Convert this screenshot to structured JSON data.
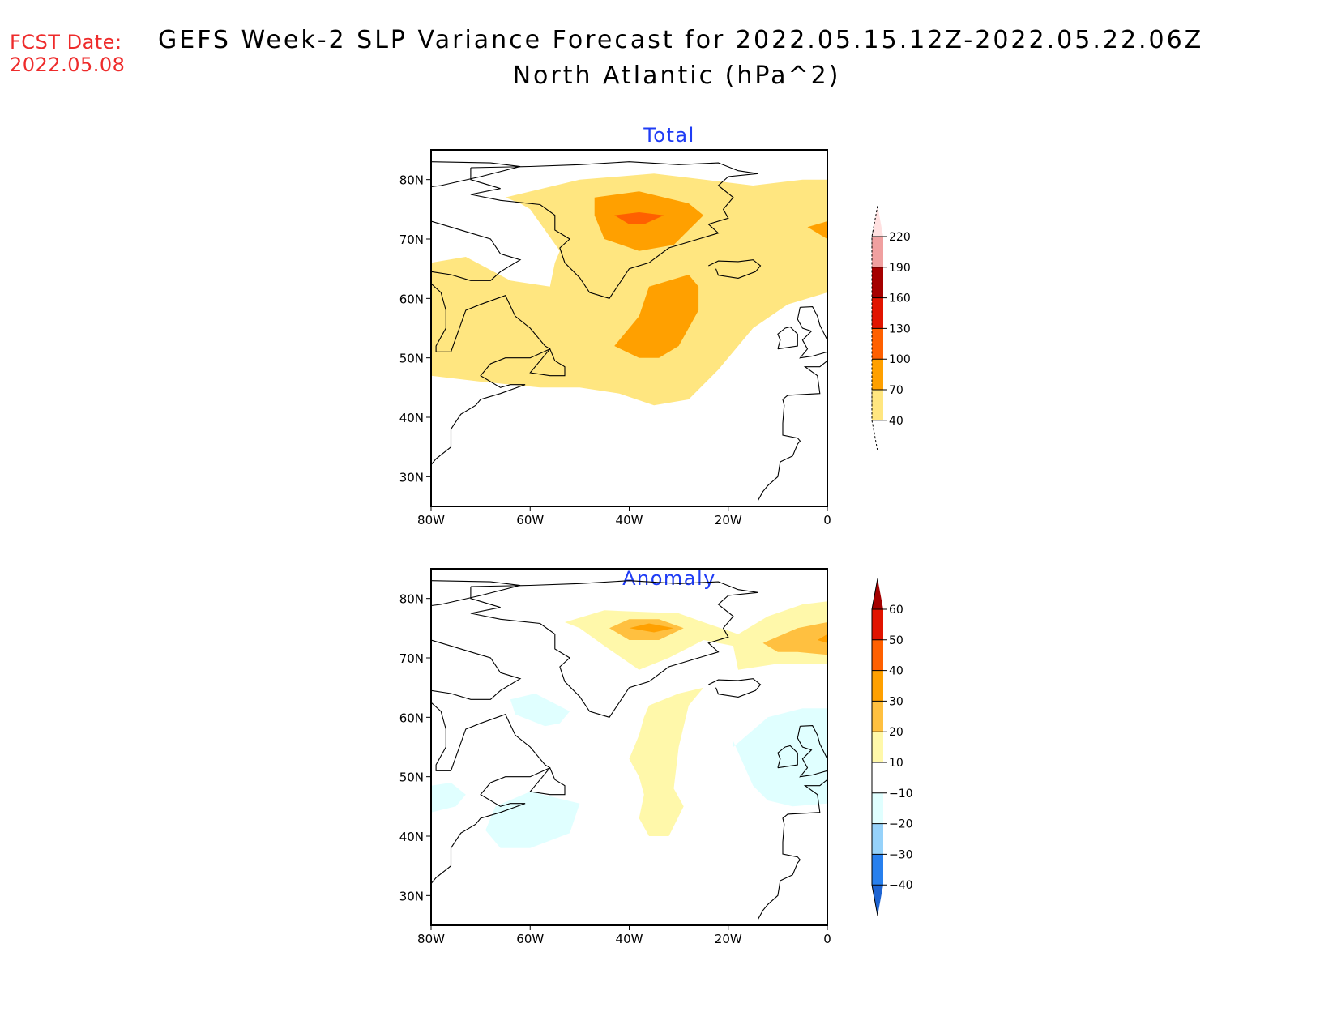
{
  "header": {
    "fcst_label": "FCST Date:",
    "fcst_date": "2022.05.08",
    "title_line1": "GEFS Week-2 SLP Variance Forecast for 2022.05.15.12Z-2022.05.22.06Z",
    "title_line2": "North Atlantic (hPa^2)"
  },
  "colors": {
    "title_text": "#000000",
    "fcst_text": "#ee2b2b",
    "panel_title_text": "#1f3cf5"
  },
  "chart_data": [
    {
      "type": "heatmap",
      "title": "Total",
      "projection": "lat-lon",
      "xlabel": "",
      "ylabel": "",
      "xlim": [
        -80,
        0
      ],
      "ylim": [
        25,
        85
      ],
      "x_ticks": [
        {
          "value": -80,
          "label": "80W"
        },
        {
          "value": -60,
          "label": "60W"
        },
        {
          "value": -40,
          "label": "40W"
        },
        {
          "value": -20,
          "label": "20W"
        },
        {
          "value": 0,
          "label": "0"
        }
      ],
      "y_ticks": [
        {
          "value": 80,
          "label": "80N"
        },
        {
          "value": 70,
          "label": "70N"
        },
        {
          "value": 60,
          "label": "60N"
        },
        {
          "value": 50,
          "label": "50N"
        },
        {
          "value": 40,
          "label": "40N"
        },
        {
          "value": 30,
          "label": "30N"
        }
      ],
      "colorbar": {
        "levels": [
          40,
          70,
          100,
          130,
          160,
          190,
          220
        ],
        "labels": [
          "40",
          "70",
          "100",
          "130",
          "160",
          "190",
          "220"
        ],
        "colors": [
          "#ffe680",
          "#ffa000",
          "#ff6000",
          "#e11400",
          "#a50000",
          "#f0a0a0",
          "#ffe0e0"
        ],
        "below_color": "#ffffff",
        "above_color": "#ffe0e0"
      },
      "regions": [
        {
          "name": "total-40-70-band",
          "level": "40-70",
          "lonlat": [
            [
              -65,
              77
            ],
            [
              -50,
              80
            ],
            [
              -35,
              81
            ],
            [
              -15,
              79
            ],
            [
              -5,
              80
            ],
            [
              0,
              80
            ],
            [
              0,
              61
            ],
            [
              -8,
              59
            ],
            [
              -15,
              55
            ],
            [
              -22,
              48
            ],
            [
              -28,
              43
            ],
            [
              -35,
              42
            ],
            [
              -42,
              44
            ],
            [
              -50,
              45
            ],
            [
              -58,
              45
            ],
            [
              -70,
              46
            ],
            [
              -80,
              47
            ],
            [
              -80,
              66
            ],
            [
              -73,
              67
            ],
            [
              -64,
              63
            ],
            [
              -56,
              62
            ],
            [
              -55,
              66
            ],
            [
              -54,
              68
            ],
            [
              -60,
              75
            ],
            [
              -62,
              76
            ]
          ]
        },
        {
          "name": "total-70-100-north",
          "level": "70-100",
          "lonlat": [
            [
              -47,
              77
            ],
            [
              -38,
              78
            ],
            [
              -28,
              76
            ],
            [
              -25,
              74
            ],
            [
              -31,
              69
            ],
            [
              -38,
              68
            ],
            [
              -45,
              70
            ],
            [
              -47,
              74
            ]
          ]
        },
        {
          "name": "total-100-130-north",
          "level": "100-130",
          "lonlat": [
            [
              -43,
              74
            ],
            [
              -38,
              74.5
            ],
            [
              -33,
              74
            ],
            [
              -37,
              72.5
            ],
            [
              -40,
              72.5
            ]
          ]
        },
        {
          "name": "total-70-100-central",
          "level": "70-100",
          "lonlat": [
            [
              -36,
              62
            ],
            [
              -28,
              64
            ],
            [
              -26,
              62
            ],
            [
              -26,
              58
            ],
            [
              -30,
              52
            ],
            [
              -34,
              50
            ],
            [
              -38,
              50
            ],
            [
              -43,
              52
            ],
            [
              -40,
              55
            ],
            [
              -38,
              57
            ]
          ]
        },
        {
          "name": "total-70-100-east-edge",
          "level": "70-100",
          "lonlat": [
            [
              -4,
              72
            ],
            [
              0,
              73
            ],
            [
              0,
              70
            ]
          ]
        }
      ]
    },
    {
      "type": "heatmap",
      "title": "Anomaly",
      "projection": "lat-lon",
      "xlabel": "",
      "ylabel": "",
      "xlim": [
        -80,
        0
      ],
      "ylim": [
        25,
        85
      ],
      "x_ticks": [
        {
          "value": -80,
          "label": "80W"
        },
        {
          "value": -60,
          "label": "60W"
        },
        {
          "value": -40,
          "label": "40W"
        },
        {
          "value": -20,
          "label": "20W"
        },
        {
          "value": 0,
          "label": "0"
        }
      ],
      "y_ticks": [
        {
          "value": 80,
          "label": "80N"
        },
        {
          "value": 70,
          "label": "70N"
        },
        {
          "value": 60,
          "label": "60N"
        },
        {
          "value": 50,
          "label": "50N"
        },
        {
          "value": 40,
          "label": "40N"
        },
        {
          "value": 30,
          "label": "30N"
        }
      ],
      "colorbar": {
        "levels": [
          -40,
          -30,
          -20,
          -10,
          10,
          20,
          30,
          40,
          50,
          60
        ],
        "labels": [
          "-40",
          "-30",
          "-20",
          "-10",
          "10",
          "20",
          "30",
          "40",
          "50",
          "60"
        ],
        "colors": [
          "#2880ee",
          "#96d2fa",
          "#e0ffff",
          "#ffffff",
          "#fff8aa",
          "#ffc040",
          "#ffa000",
          "#ff6000",
          "#e11400"
        ],
        "below_color": "#1e64d2",
        "above_color": "#a50000"
      },
      "regions": [
        {
          "name": "anom-10-20-greenland",
          "level": "10-20",
          "lonlat": [
            [
              -53,
              76
            ],
            [
              -45,
              78
            ],
            [
              -30,
              77.5
            ],
            [
              -25,
              76
            ],
            [
              -18,
              74
            ],
            [
              -12,
              77
            ],
            [
              -5,
              79
            ],
            [
              0,
              79.5
            ],
            [
              0,
              69
            ],
            [
              -10,
              69
            ],
            [
              -18,
              68
            ],
            [
              -19,
              72
            ],
            [
              -25,
              73
            ],
            [
              -32,
              70
            ],
            [
              -38,
              68
            ],
            [
              -45,
              72
            ],
            [
              -50,
              75
            ]
          ]
        },
        {
          "name": "anom-20-30-greenland",
          "level": "20-30",
          "lonlat": [
            [
              -44,
              75
            ],
            [
              -40,
              76.5
            ],
            [
              -34,
              76.5
            ],
            [
              -29,
              75
            ],
            [
              -34,
              73
            ],
            [
              -40,
              73
            ],
            [
              -44,
              75
            ]
          ]
        },
        {
          "name": "anom-30-40-greenland",
          "level": "30-40",
          "lonlat": [
            [
              -40,
              75
            ],
            [
              -36,
              75.8
            ],
            [
              -31,
              75
            ],
            [
              -35,
              74.3
            ]
          ]
        },
        {
          "name": "anom-20-30-east",
          "level": "20-30",
          "lonlat": [
            [
              -13,
              72.5
            ],
            [
              -6,
              75
            ],
            [
              0,
              76
            ],
            [
              0,
              70.5
            ],
            [
              -6,
              71
            ],
            [
              -10,
              71
            ]
          ]
        },
        {
          "name": "anom-30-40-east-edge",
          "level": "30-40",
          "lonlat": [
            [
              -2,
              73
            ],
            [
              0,
              74
            ],
            [
              0,
              72.5
            ]
          ]
        },
        {
          "name": "anom-10-20-central",
          "level": "10-20",
          "lonlat": [
            [
              -36,
              62
            ],
            [
              -30,
              64
            ],
            [
              -25,
              65
            ],
            [
              -28,
              62
            ],
            [
              -30,
              55
            ],
            [
              -31,
              48
            ],
            [
              -29,
              45
            ],
            [
              -32,
              40
            ],
            [
              -36,
              40
            ],
            [
              -38,
              43
            ],
            [
              -37,
              47
            ],
            [
              -38,
              50
            ],
            [
              -40,
              53
            ],
            [
              -38,
              57
            ],
            [
              -37,
              60
            ]
          ]
        },
        {
          "name": "anom-minus10-labrador",
          "level": "-20--10",
          "lonlat": [
            [
              -64,
              63
            ],
            [
              -59,
              64
            ],
            [
              -52,
              61
            ],
            [
              -54,
              59
            ],
            [
              -57,
              58.5
            ],
            [
              -63,
              60.5
            ]
          ]
        },
        {
          "name": "anom-minus10-us-coast",
          "level": "-20--10",
          "lonlat": [
            [
              -67,
              45
            ],
            [
              -60,
              47.5
            ],
            [
              -50,
              45.5
            ],
            [
              -52,
              40.5
            ],
            [
              -60,
              38
            ],
            [
              -66,
              38
            ],
            [
              -69,
              41
            ]
          ]
        },
        {
          "name": "anom-minus10-west-edge",
          "level": "-20--10",
          "lonlat": [
            [
              -80,
              48.5
            ],
            [
              -76,
              49
            ],
            [
              -73,
              47
            ],
            [
              -75,
              45
            ],
            [
              -80,
              44
            ]
          ]
        },
        {
          "name": "anom-minus10-uk",
          "level": "-20--10",
          "lonlat": [
            [
              -19,
              55
            ],
            [
              -12,
              60
            ],
            [
              -5,
              61.5
            ],
            [
              0,
              61.5
            ],
            [
              0,
              45.5
            ],
            [
              -7,
              45
            ],
            [
              -12,
              46
            ],
            [
              -15,
              48.5
            ],
            [
              -19,
              56
            ]
          ]
        }
      ]
    }
  ]
}
